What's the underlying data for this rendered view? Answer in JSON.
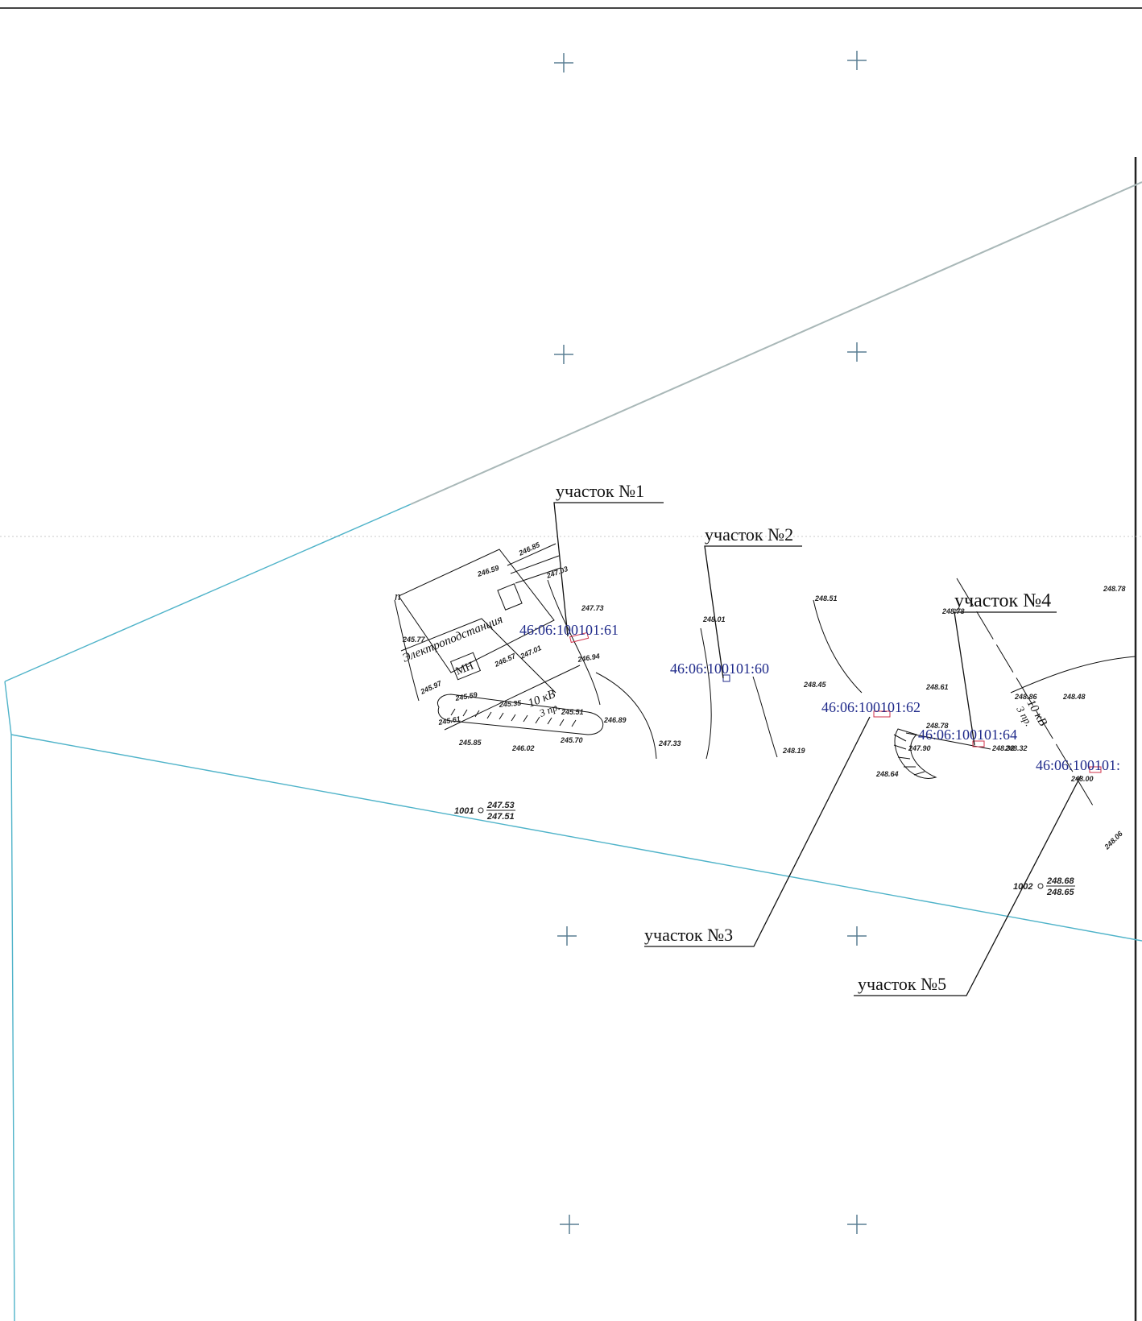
{
  "colors": {
    "boundary": "#4fb3c9",
    "cadastral_text": "#1f2a8a",
    "grid_cross": "#5a7f93",
    "linework": "#111111",
    "parcel_outline": "#d0304a"
  },
  "plots": [
    {
      "label": "участок №1"
    },
    {
      "label": "участок №2"
    },
    {
      "label": "участок №3"
    },
    {
      "label": "участок №4"
    },
    {
      "label": "участок №5"
    }
  ],
  "cadastral_numbers": [
    "46:06:100101:61",
    "46:06:100101:60",
    "46:06:100101:62",
    "46:06:100101:64",
    "46:06:100101:"
  ],
  "features": {
    "substation_text": "Электроподстанция",
    "mn_box": "МН",
    "power_line_1": "10 кВ",
    "power_line_1_wires": "3 пр.",
    "power_line_2": "10 кВ",
    "power_line_2_wires": "3 пр.",
    "fragment_left": "n"
  },
  "benchmarks": [
    {
      "id": "1001",
      "top": "247.53",
      "bottom": "247.51"
    },
    {
      "id": "1002",
      "top": "248.68",
      "bottom": "248.65"
    }
  ],
  "elevations": [
    "246.85",
    "246.59",
    "247.03",
    "247.73",
    "246.94",
    "246.57",
    "247.01",
    "245.97",
    "245.59",
    "245.35",
    "245.61",
    "245.51",
    "246.89",
    "245.70",
    "245.85",
    "246.02",
    "247.33",
    "248.01",
    "248.51",
    "248.45",
    "248.19",
    "248.61",
    "248.78",
    "248.86",
    "248.48",
    "248.32",
    "248.78",
    "247.90",
    "248.64",
    "248.32",
    "248.00",
    "248.78",
    "248.06",
    "245.77"
  ]
}
